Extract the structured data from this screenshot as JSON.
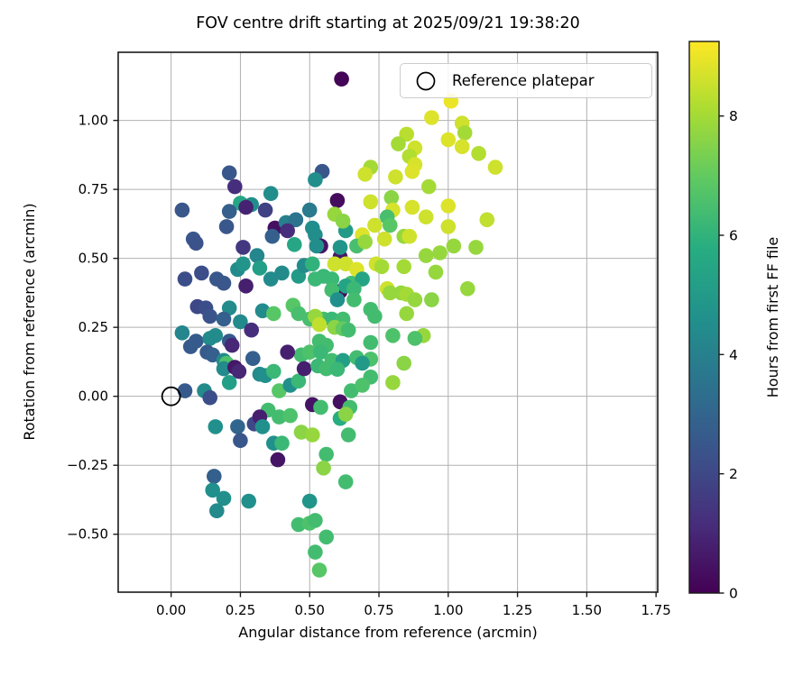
{
  "title": "FOV centre drift starting at 2025/09/21 19:38:20",
  "legend": {
    "label": "Reference platepar"
  },
  "chart_data": {
    "type": "scatter",
    "title": "FOV centre drift starting at 2025/09/21 19:38:20",
    "xlabel": "Angular distance from reference (arcmin)",
    "ylabel": "Rotation from reference (arcmin)",
    "xlim": [
      -0.191,
      1.756
    ],
    "ylim": [
      -0.71,
      1.247
    ],
    "grid": true,
    "xticks": {
      "values": [
        0.0,
        0.25,
        0.5,
        0.75,
        1.0,
        1.25,
        1.5,
        1.75
      ],
      "labels": [
        "0.00",
        "0.25",
        "0.50",
        "0.75",
        "1.00",
        "1.25",
        "1.50",
        "1.75"
      ]
    },
    "yticks": {
      "values": [
        -0.5,
        -0.25,
        0.0,
        0.25,
        0.5,
        0.75,
        1.0
      ],
      "labels": [
        "−0.50",
        "−0.25",
        "0.00",
        "0.25",
        "0.50",
        "0.75",
        "1.00"
      ]
    },
    "legend_label": "Reference platepar",
    "reference_point": [
      0.0,
      0.0
    ],
    "colorbar": {
      "label": "Hours from first FF file",
      "vmin": 0,
      "vmax": 9.25,
      "ticks": {
        "values": [
          0,
          2,
          4,
          6,
          8
        ],
        "labels": [
          "0",
          "2",
          "4",
          "6",
          "8"
        ]
      },
      "colormap": "viridis",
      "colormap_stops": [
        [
          0.0,
          "#440154"
        ],
        [
          0.125,
          "#472d7b"
        ],
        [
          0.25,
          "#3b528b"
        ],
        [
          0.375,
          "#2c728e"
        ],
        [
          0.5,
          "#21918c"
        ],
        [
          0.625,
          "#27ad81"
        ],
        [
          0.75,
          "#5ec962"
        ],
        [
          0.875,
          "#aadc32"
        ],
        [
          1.0,
          "#fde725"
        ]
      ]
    },
    "points_format": [
      "angular_distance_arcmin",
      "rotation_arcmin",
      "hours_from_first_ff"
    ],
    "points": [
      [
        0.21,
        0.81,
        2.5
      ],
      [
        0.23,
        0.76,
        1.2
      ],
      [
        0.04,
        0.675,
        2.5
      ],
      [
        0.25,
        0.7,
        5.5
      ],
      [
        0.29,
        0.695,
        4.5
      ],
      [
        0.27,
        0.685,
        0.9
      ],
      [
        0.36,
        0.735,
        4.5
      ],
      [
        0.34,
        0.675,
        1.8
      ],
      [
        0.21,
        0.67,
        2.8
      ],
      [
        0.375,
        0.61,
        0.4
      ],
      [
        0.415,
        0.63,
        4.0
      ],
      [
        0.45,
        0.64,
        3.5
      ],
      [
        0.2,
        0.615,
        2.5
      ],
      [
        0.5,
        0.675,
        3.8
      ],
      [
        0.51,
        0.61,
        4.5
      ],
      [
        0.545,
        0.815,
        2.5
      ],
      [
        0.52,
        0.585,
        4.5
      ],
      [
        0.42,
        0.6,
        1.2
      ],
      [
        0.615,
        1.15,
        0.1
      ],
      [
        1.01,
        1.07,
        9.0
      ],
      [
        0.94,
        1.01,
        8.8
      ],
      [
        1.05,
        0.99,
        8.6
      ],
      [
        1.06,
        0.955,
        8.0
      ],
      [
        0.85,
        0.95,
        8.3
      ],
      [
        1.0,
        0.93,
        8.8
      ],
      [
        0.82,
        0.915,
        8.0
      ],
      [
        0.88,
        0.9,
        8.6
      ],
      [
        0.86,
        0.87,
        8.2
      ],
      [
        1.05,
        0.905,
        8.7
      ],
      [
        1.11,
        0.88,
        8.2
      ],
      [
        1.17,
        0.83,
        8.6
      ],
      [
        0.72,
        0.83,
        8.0
      ],
      [
        0.7,
        0.805,
        8.6
      ],
      [
        0.88,
        0.84,
        8.7
      ],
      [
        0.81,
        0.795,
        8.6
      ],
      [
        0.87,
        0.815,
        8.8
      ],
      [
        0.52,
        0.785,
        4.5
      ],
      [
        0.93,
        0.76,
        8.0
      ],
      [
        0.6,
        0.71,
        0.3
      ],
      [
        0.59,
        0.66,
        7.8
      ],
      [
        0.63,
        0.6,
        5.0
      ],
      [
        0.62,
        0.635,
        7.6
      ],
      [
        0.72,
        0.705,
        8.6
      ],
      [
        0.735,
        0.62,
        8.6
      ],
      [
        0.69,
        0.585,
        8.8
      ],
      [
        0.795,
        0.72,
        7.6
      ],
      [
        0.8,
        0.675,
        8.7
      ],
      [
        0.87,
        0.685,
        8.7
      ],
      [
        1.0,
        0.69,
        8.8
      ],
      [
        0.92,
        0.65,
        8.6
      ],
      [
        0.78,
        0.65,
        6.5
      ],
      [
        1.14,
        0.64,
        8.4
      ],
      [
        0.79,
        0.62,
        6.8
      ],
      [
        1.0,
        0.615,
        8.6
      ],
      [
        0.08,
        0.57,
        2.5
      ],
      [
        0.09,
        0.555,
        2.3
      ],
      [
        0.365,
        0.58,
        2.8
      ],
      [
        0.26,
        0.54,
        1.5
      ],
      [
        0.445,
        0.55,
        5.5
      ],
      [
        0.31,
        0.51,
        4.2
      ],
      [
        0.54,
        0.545,
        0.5
      ],
      [
        0.525,
        0.545,
        4.5
      ],
      [
        0.61,
        0.505,
        0.6
      ],
      [
        0.61,
        0.54,
        4.8
      ],
      [
        0.67,
        0.545,
        6.5
      ],
      [
        0.7,
        0.56,
        7.8
      ],
      [
        0.77,
        0.57,
        8.6
      ],
      [
        0.84,
        0.58,
        7.8
      ],
      [
        0.86,
        0.58,
        8.6
      ],
      [
        0.92,
        0.51,
        7.8
      ],
      [
        0.97,
        0.52,
        7.8
      ],
      [
        1.02,
        0.545,
        7.8
      ],
      [
        1.1,
        0.54,
        7.8
      ],
      [
        0.84,
        0.47,
        8.0
      ],
      [
        0.05,
        0.425,
        2.2
      ],
      [
        0.11,
        0.447,
        2.2
      ],
      [
        0.165,
        0.425,
        2.5
      ],
      [
        0.19,
        0.41,
        2.5
      ],
      [
        0.27,
        0.4,
        0.8
      ],
      [
        0.24,
        0.46,
        4.4
      ],
      [
        0.26,
        0.48,
        4.8
      ],
      [
        0.32,
        0.465,
        5.2
      ],
      [
        0.36,
        0.425,
        4.4
      ],
      [
        0.4,
        0.447,
        4.4
      ],
      [
        0.46,
        0.435,
        5.0
      ],
      [
        0.48,
        0.474,
        4.4
      ],
      [
        0.51,
        0.48,
        6.0
      ],
      [
        0.095,
        0.325,
        2.0
      ],
      [
        0.125,
        0.32,
        2.2
      ],
      [
        0.14,
        0.29,
        2.4
      ],
      [
        0.21,
        0.32,
        4.4
      ],
      [
        0.19,
        0.28,
        2.8
      ],
      [
        0.25,
        0.27,
        4.4
      ],
      [
        0.29,
        0.24,
        1.2
      ],
      [
        0.33,
        0.31,
        4.4
      ],
      [
        0.37,
        0.3,
        6.8
      ],
      [
        0.44,
        0.33,
        6.8
      ],
      [
        0.46,
        0.3,
        6.5
      ],
      [
        0.5,
        0.28,
        6.5
      ],
      [
        0.04,
        0.23,
        4.2
      ],
      [
        0.09,
        0.2,
        2.6
      ],
      [
        0.07,
        0.18,
        2.6
      ],
      [
        0.14,
        0.21,
        4.4
      ],
      [
        0.16,
        0.22,
        4.4
      ],
      [
        0.21,
        0.2,
        2.6
      ],
      [
        0.22,
        0.185,
        1.0
      ],
      [
        0.13,
        0.16,
        2.6
      ],
      [
        0.15,
        0.15,
        2.8
      ],
      [
        0.19,
        0.13,
        4.4
      ],
      [
        0.2,
        0.12,
        6.6
      ],
      [
        0.19,
        0.1,
        4.4
      ],
      [
        0.23,
        0.105,
        0.6
      ],
      [
        0.245,
        0.09,
        1.0
      ],
      [
        0.295,
        0.137,
        2.8
      ],
      [
        0.21,
        0.05,
        5.2
      ],
      [
        0.05,
        0.02,
        2.6
      ],
      [
        0.12,
        0.02,
        4.4
      ],
      [
        0.14,
        -0.005,
        2.2
      ],
      [
        0.32,
        0.08,
        4.4
      ],
      [
        0.34,
        0.075,
        4.6
      ],
      [
        0.37,
        0.09,
        6.2
      ],
      [
        0.39,
        0.02,
        6.8
      ],
      [
        0.43,
        0.04,
        4.6
      ],
      [
        0.46,
        0.055,
        6.2
      ],
      [
        0.47,
        0.15,
        6.4
      ],
      [
        0.5,
        0.16,
        6.6
      ],
      [
        0.42,
        0.16,
        0.8
      ],
      [
        0.48,
        0.1,
        0.8
      ],
      [
        0.51,
        -0.03,
        0.5
      ],
      [
        0.35,
        -0.05,
        6.4
      ],
      [
        0.59,
        0.48,
        8.6
      ],
      [
        0.63,
        0.48,
        8.6
      ],
      [
        0.67,
        0.46,
        8.8
      ],
      [
        0.74,
        0.48,
        8.6
      ],
      [
        0.76,
        0.47,
        8.0
      ],
      [
        0.55,
        0.435,
        6.2
      ],
      [
        0.52,
        0.425,
        6.2
      ],
      [
        0.58,
        0.425,
        6.2
      ],
      [
        0.65,
        0.41,
        6.4
      ],
      [
        0.69,
        0.425,
        5.4
      ],
      [
        0.955,
        0.45,
        7.8
      ],
      [
        1.07,
        0.39,
        7.8
      ],
      [
        0.61,
        0.38,
        0.3
      ],
      [
        0.63,
        0.4,
        5.4
      ],
      [
        0.66,
        0.39,
        6.2
      ],
      [
        0.58,
        0.385,
        6.4
      ],
      [
        0.6,
        0.35,
        4.6
      ],
      [
        0.66,
        0.35,
        6.4
      ],
      [
        0.78,
        0.39,
        8.6
      ],
      [
        0.79,
        0.375,
        7.8
      ],
      [
        0.83,
        0.375,
        7.8
      ],
      [
        0.85,
        0.37,
        8.0
      ],
      [
        0.88,
        0.35,
        7.8
      ],
      [
        0.94,
        0.35,
        7.6
      ],
      [
        0.72,
        0.315,
        6.4
      ],
      [
        0.735,
        0.29,
        6.4
      ],
      [
        0.85,
        0.3,
        7.8
      ],
      [
        0.91,
        0.22,
        7.8
      ],
      [
        0.55,
        0.28,
        6.4
      ],
      [
        0.58,
        0.28,
        6.2
      ],
      [
        0.62,
        0.28,
        6.4
      ],
      [
        0.52,
        0.29,
        7.8
      ],
      [
        0.535,
        0.26,
        8.4
      ],
      [
        0.59,
        0.25,
        7.6
      ],
      [
        0.62,
        0.245,
        7.0
      ],
      [
        0.64,
        0.24,
        6.4
      ],
      [
        0.8,
        0.22,
        6.6
      ],
      [
        0.88,
        0.21,
        6.6
      ],
      [
        0.72,
        0.195,
        6.4
      ],
      [
        0.535,
        0.2,
        6.4
      ],
      [
        0.56,
        0.185,
        6.4
      ],
      [
        0.54,
        0.16,
        6.2
      ],
      [
        0.58,
        0.13,
        6.4
      ],
      [
        0.62,
        0.13,
        5.2
      ],
      [
        0.67,
        0.14,
        6.4
      ],
      [
        0.72,
        0.135,
        6.6
      ],
      [
        0.69,
        0.12,
        5.0
      ],
      [
        0.53,
        0.11,
        6.2
      ],
      [
        0.56,
        0.1,
        6.4
      ],
      [
        0.6,
        0.098,
        6.2
      ],
      [
        0.72,
        0.07,
        6.4
      ],
      [
        0.65,
        0.02,
        6.4
      ],
      [
        0.69,
        0.04,
        6.6
      ],
      [
        0.8,
        0.05,
        7.8
      ],
      [
        0.84,
        0.12,
        7.6
      ],
      [
        0.61,
        -0.02,
        0.4
      ],
      [
        0.645,
        -0.04,
        6.4
      ],
      [
        0.54,
        -0.04,
        6.4
      ],
      [
        0.16,
        -0.11,
        4.6
      ],
      [
        0.24,
        -0.11,
        3.0
      ],
      [
        0.25,
        -0.16,
        2.5
      ],
      [
        0.3,
        -0.1,
        2.0
      ],
      [
        0.32,
        -0.075,
        0.8
      ],
      [
        0.33,
        -0.11,
        4.6
      ],
      [
        0.39,
        -0.075,
        6.4
      ],
      [
        0.43,
        -0.07,
        6.6
      ],
      [
        0.47,
        -0.13,
        7.6
      ],
      [
        0.51,
        -0.14,
        7.8
      ],
      [
        0.37,
        -0.17,
        4.6
      ],
      [
        0.4,
        -0.17,
        6.2
      ],
      [
        0.385,
        -0.23,
        0.5
      ],
      [
        0.155,
        -0.29,
        2.8
      ],
      [
        0.15,
        -0.34,
        4.6
      ],
      [
        0.19,
        -0.37,
        4.6
      ],
      [
        0.165,
        -0.415,
        4.4
      ],
      [
        0.28,
        -0.38,
        4.6
      ],
      [
        0.5,
        -0.38,
        4.8
      ],
      [
        0.46,
        -0.465,
        6.4
      ],
      [
        0.5,
        -0.46,
        6.6
      ],
      [
        0.61,
        -0.08,
        5.8
      ],
      [
        0.63,
        -0.065,
        7.6
      ],
      [
        0.64,
        -0.14,
        6.4
      ],
      [
        0.56,
        -0.21,
        6.4
      ],
      [
        0.55,
        -0.26,
        7.6
      ],
      [
        0.63,
        -0.31,
        6.4
      ],
      [
        0.52,
        -0.45,
        6.4
      ],
      [
        0.56,
        -0.51,
        6.4
      ],
      [
        0.52,
        -0.565,
        6.4
      ],
      [
        0.535,
        -0.63,
        6.8
      ]
    ]
  }
}
